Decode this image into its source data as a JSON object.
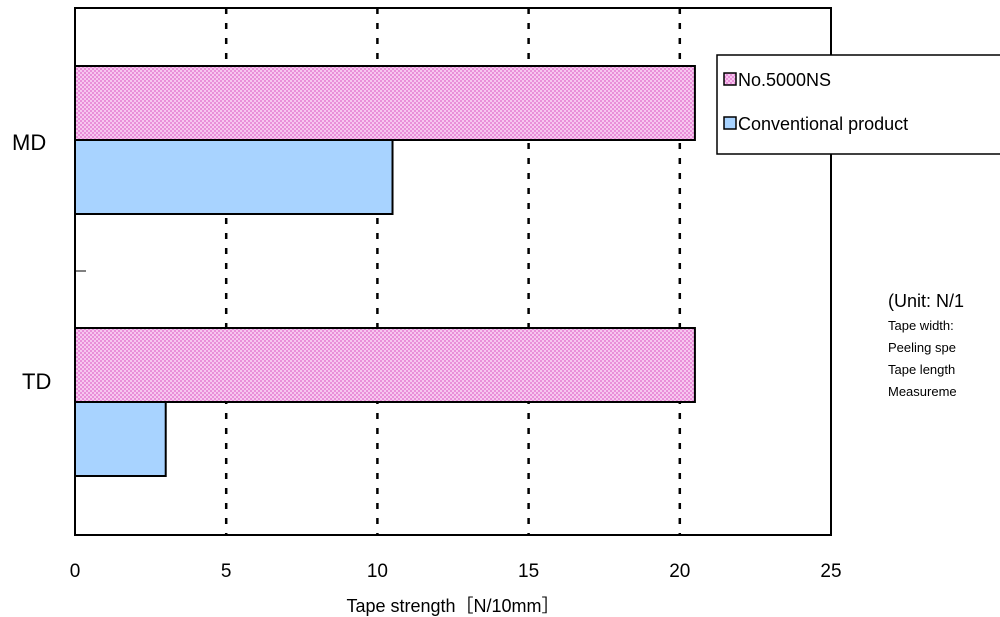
{
  "chart_data": {
    "type": "bar",
    "orientation": "horizontal",
    "categories": [
      "MD",
      "TD"
    ],
    "series": [
      {
        "name": "No.5000NS",
        "values": [
          20.5,
          20.5
        ],
        "color": "#f2a2e6",
        "pattern": "checker",
        "border": "#000000"
      },
      {
        "name": "Conventional product",
        "values": [
          10.5,
          3.0
        ],
        "color": "#a8d3ff",
        "pattern": "solid",
        "border": "#000000"
      }
    ],
    "xlabel": "Tape strength［N/10mm］",
    "ylabel": "",
    "xlim": [
      0,
      25
    ],
    "xticks": [
      "0",
      "5",
      "10",
      "15",
      "20",
      "25"
    ],
    "grid": "vertical-dotted",
    "legend_position": "top-right"
  },
  "notes": {
    "heading": "(Unit: N/1",
    "lines": [
      "Tape width:",
      "Peeling spe",
      "Tape length",
      "Measureme"
    ]
  }
}
